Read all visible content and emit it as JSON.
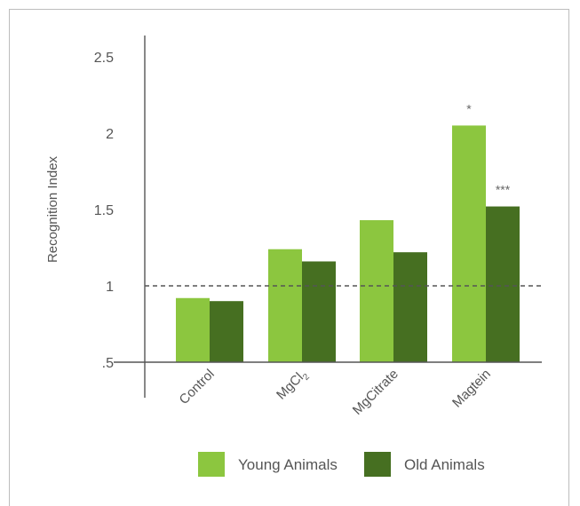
{
  "chart_data": {
    "type": "bar",
    "title": "",
    "xlabel": "",
    "ylabel": "Recognition Index",
    "ylim": [
      0.5,
      2.5
    ],
    "yticks": [
      {
        "value": 0.5,
        "label": ".5"
      },
      {
        "value": 1.0,
        "label": "1"
      },
      {
        "value": 1.5,
        "label": "1.5"
      },
      {
        "value": 2.0,
        "label": "2"
      },
      {
        "value": 2.5,
        "label": "2.5"
      }
    ],
    "categories": [
      "Control",
      "MgCl",
      "MgCitrate",
      "Magtein"
    ],
    "category_subscripts": [
      "",
      "2",
      "",
      ""
    ],
    "series": [
      {
        "name": "Young Animals",
        "color": "#8cc63f",
        "values": [
          0.92,
          1.24,
          1.43,
          2.05
        ],
        "annotations": [
          "",
          "",
          "",
          "*"
        ]
      },
      {
        "name": "Old Animals",
        "color": "#466f21",
        "values": [
          0.9,
          1.16,
          1.22,
          1.52
        ],
        "annotations": [
          "",
          "",
          "",
          "***"
        ]
      }
    ],
    "reference_line": {
      "value": 1.0,
      "style": "dashed",
      "color": "#555555"
    },
    "legend_position": "bottom",
    "grid": false
  }
}
